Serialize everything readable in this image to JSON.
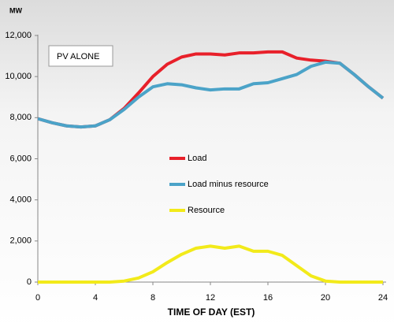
{
  "chart_data": {
    "type": "line",
    "y_label": "MW",
    "x_label": "TIME OF DAY (EST)",
    "annotation": "PV ALONE",
    "x": [
      0,
      1,
      2,
      3,
      4,
      5,
      6,
      7,
      8,
      9,
      10,
      11,
      12,
      13,
      14,
      15,
      16,
      17,
      18,
      19,
      20,
      21,
      22,
      23,
      24
    ],
    "series": [
      {
        "name": "Load",
        "color": "#e8202a",
        "values": [
          7950,
          7750,
          7600,
          7550,
          7600,
          7900,
          8450,
          9200,
          10000,
          10600,
          10950,
          11100,
          11100,
          11050,
          11150,
          11150,
          11200,
          11200,
          10900,
          10800,
          10750,
          10650,
          10100,
          9500,
          8950
        ]
      },
      {
        "name": "Load minus resource",
        "color": "#4ba3c8",
        "values": [
          7950,
          7750,
          7600,
          7550,
          7600,
          7900,
          8400,
          9000,
          9500,
          9650,
          9600,
          9450,
          9350,
          9400,
          9400,
          9650,
          9700,
          9900,
          10100,
          10500,
          10700,
          10650,
          10100,
          9500,
          8950
        ]
      },
      {
        "name": "Resource",
        "color": "#f2ea1a",
        "values": [
          0,
          0,
          0,
          0,
          0,
          0,
          50,
          200,
          500,
          950,
          1350,
          1650,
          1750,
          1650,
          1750,
          1500,
          1500,
          1300,
          800,
          300,
          50,
          0,
          0,
          0,
          0
        ]
      }
    ],
    "xlim": [
      0,
      24
    ],
    "xticks": [
      0,
      4,
      8,
      12,
      16,
      20,
      24
    ],
    "ylim": [
      0,
      12000
    ],
    "yticks": [
      0,
      {
        "value": 2000,
        "label": "2,000"
      },
      {
        "value": 4000,
        "label": "4,000"
      },
      {
        "value": 6000,
        "label": "6,000"
      },
      {
        "value": 8000,
        "label": "8,000"
      },
      {
        "value": 10000,
        "label": "10,000"
      },
      {
        "value": 12000,
        "label": "12,000"
      }
    ]
  }
}
